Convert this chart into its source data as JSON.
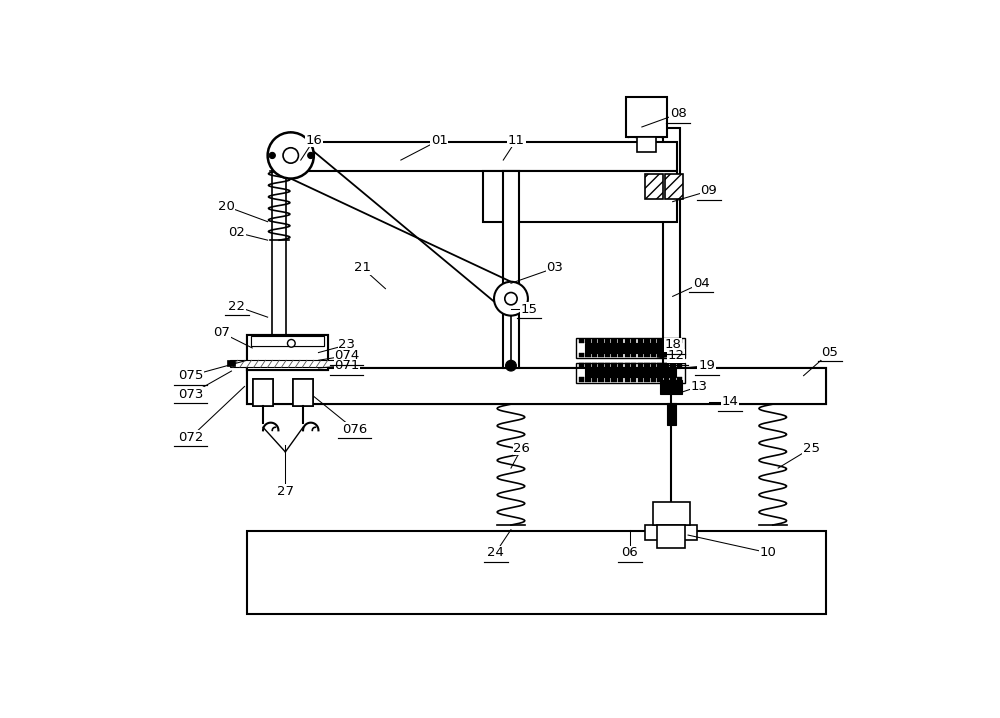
{
  "bg_color": "#ffffff",
  "line_color": "#000000",
  "fig_width": 10.0,
  "fig_height": 7.18,
  "label_configs": [
    [
      "08",
      7.15,
      6.82,
      6.68,
      6.65,
      true
    ],
    [
      "01",
      4.05,
      6.48,
      3.55,
      6.22,
      false
    ],
    [
      "11",
      5.05,
      6.48,
      4.88,
      6.22,
      false
    ],
    [
      "16",
      2.42,
      6.48,
      2.25,
      6.22,
      false
    ],
    [
      "09",
      7.55,
      5.82,
      7.08,
      5.68,
      true
    ],
    [
      "20",
      1.28,
      5.62,
      1.82,
      5.42,
      false
    ],
    [
      "02",
      1.42,
      5.28,
      1.82,
      5.18,
      false
    ],
    [
      "03",
      5.55,
      4.82,
      4.98,
      4.62,
      false
    ],
    [
      "04",
      7.45,
      4.62,
      7.08,
      4.45,
      true
    ],
    [
      "21",
      3.05,
      4.82,
      3.35,
      4.55,
      false
    ],
    [
      "15",
      5.22,
      4.28,
      4.98,
      4.28,
      true
    ],
    [
      "22",
      1.42,
      4.32,
      1.82,
      4.18,
      true
    ],
    [
      "07",
      1.22,
      3.98,
      1.62,
      3.78,
      false
    ],
    [
      "18",
      7.08,
      3.82,
      6.88,
      3.78,
      true
    ],
    [
      "12",
      7.12,
      3.68,
      6.88,
      3.65,
      true
    ],
    [
      "23",
      2.85,
      3.82,
      2.48,
      3.72,
      false
    ],
    [
      "19",
      7.52,
      3.55,
      7.22,
      3.52,
      true
    ],
    [
      "13",
      7.42,
      3.28,
      7.12,
      3.18,
      false
    ],
    [
      "074",
      2.85,
      3.68,
      2.48,
      3.62,
      true
    ],
    [
      "071",
      2.85,
      3.55,
      2.48,
      3.52,
      true
    ],
    [
      "075",
      0.82,
      3.42,
      1.55,
      3.62,
      true
    ],
    [
      "073",
      0.82,
      3.18,
      1.35,
      3.48,
      true
    ],
    [
      "14",
      7.82,
      3.08,
      7.55,
      3.08,
      true
    ],
    [
      "05",
      9.12,
      3.72,
      8.78,
      3.42,
      true
    ],
    [
      "072",
      0.82,
      2.62,
      1.52,
      3.28,
      true
    ],
    [
      "076",
      2.95,
      2.72,
      2.42,
      3.15,
      true
    ],
    [
      "26",
      5.12,
      2.48,
      4.98,
      2.22,
      false
    ],
    [
      "25",
      8.88,
      2.48,
      8.45,
      2.22,
      false
    ],
    [
      "27",
      2.05,
      1.92,
      2.05,
      2.52,
      false
    ],
    [
      "06",
      6.52,
      1.12,
      6.52,
      1.42,
      true
    ],
    [
      "24",
      4.78,
      1.12,
      4.98,
      1.42,
      true
    ],
    [
      "10",
      8.32,
      1.12,
      7.28,
      1.35,
      false
    ]
  ]
}
